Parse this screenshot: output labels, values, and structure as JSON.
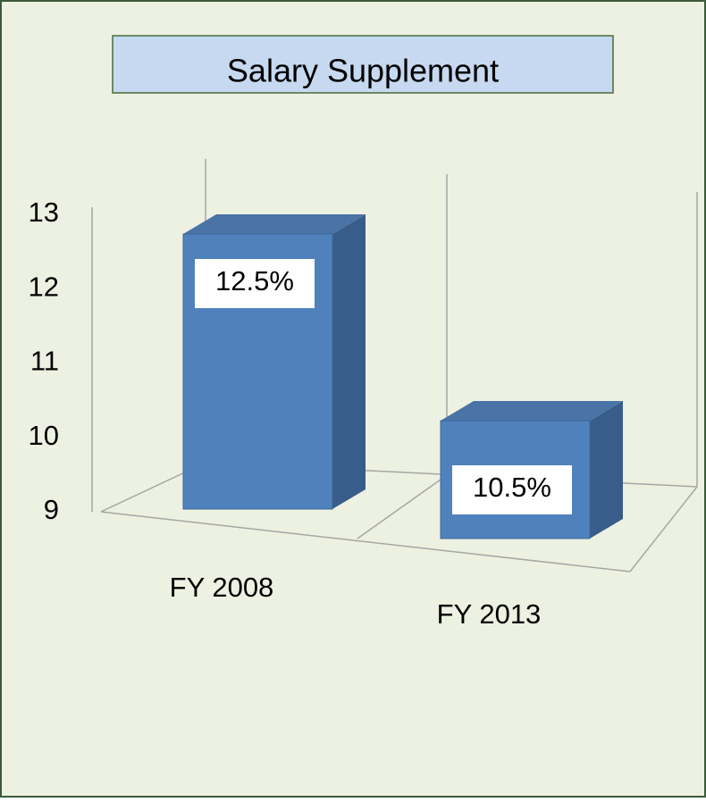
{
  "chart_data": {
    "type": "bar3d",
    "title": "Salary Supplement",
    "categories": [
      "FY 2008",
      "FY 2013"
    ],
    "values": [
      12.5,
      10.5
    ],
    "value_labels": [
      "12.5%",
      "10.5%"
    ],
    "color": "#4f81bd",
    "ylim": [
      9,
      13
    ],
    "yticks": [
      9,
      10,
      11,
      12,
      13
    ]
  }
}
